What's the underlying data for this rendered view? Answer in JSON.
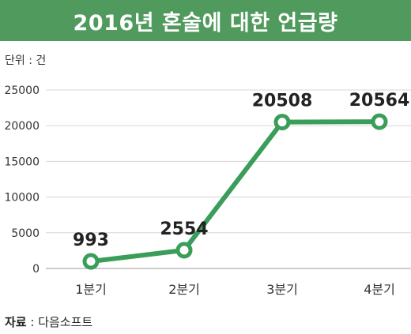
{
  "chart_data": {
    "type": "line",
    "title": "2016년 혼술에 대한 언급량",
    "unit_label": "단위 : 건",
    "categories": [
      "1분기",
      "2분기",
      "3분기",
      "4분기"
    ],
    "values": [
      993,
      2554,
      20508,
      20564
    ],
    "data_labels": [
      "993",
      "2554",
      "20508",
      "20564"
    ],
    "yticks": [
      "0",
      "5000",
      "10000",
      "15000",
      "20000",
      "25000"
    ],
    "ylim": [
      0,
      25000
    ],
    "grid": true,
    "line_color": "#3a9d5a",
    "banner_color": "#4f9a5c"
  },
  "source": {
    "label": "자료",
    "separator": ":",
    "value": "다음소프트"
  }
}
